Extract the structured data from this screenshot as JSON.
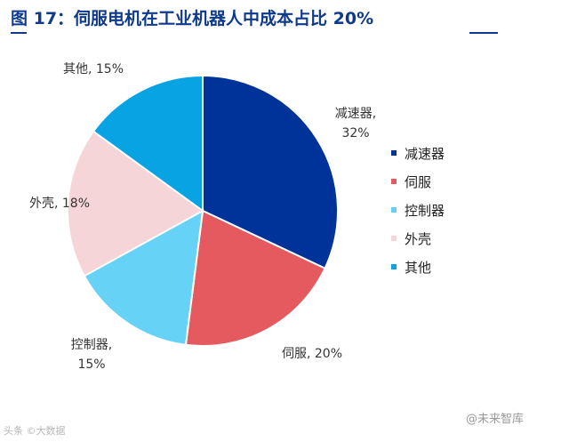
{
  "header": {
    "title": "图 17：伺服电机在工业机器人中成本占比 20%"
  },
  "chart_data": {
    "type": "pie",
    "title": "",
    "series": [
      {
        "name": "减速器",
        "value": 32,
        "label": "32%",
        "color": "#003399"
      },
      {
        "name": "伺服",
        "value": 20,
        "label": "20%",
        "color": "#e55a5e"
      },
      {
        "name": "控制器",
        "value": 15,
        "label": "15%",
        "color": "#66d2f5"
      },
      {
        "name": "外壳",
        "value": 18,
        "label": "18%",
        "color": "#f5d5d7"
      },
      {
        "name": "其他",
        "value": 15,
        "label": "15%",
        "color": "#07a3e3"
      }
    ],
    "start_angle_deg": 90,
    "direction": "clockwise",
    "legend_position": "right"
  },
  "watermarks": {
    "left": "头条 ©大数据",
    "right": "@未来智库"
  }
}
